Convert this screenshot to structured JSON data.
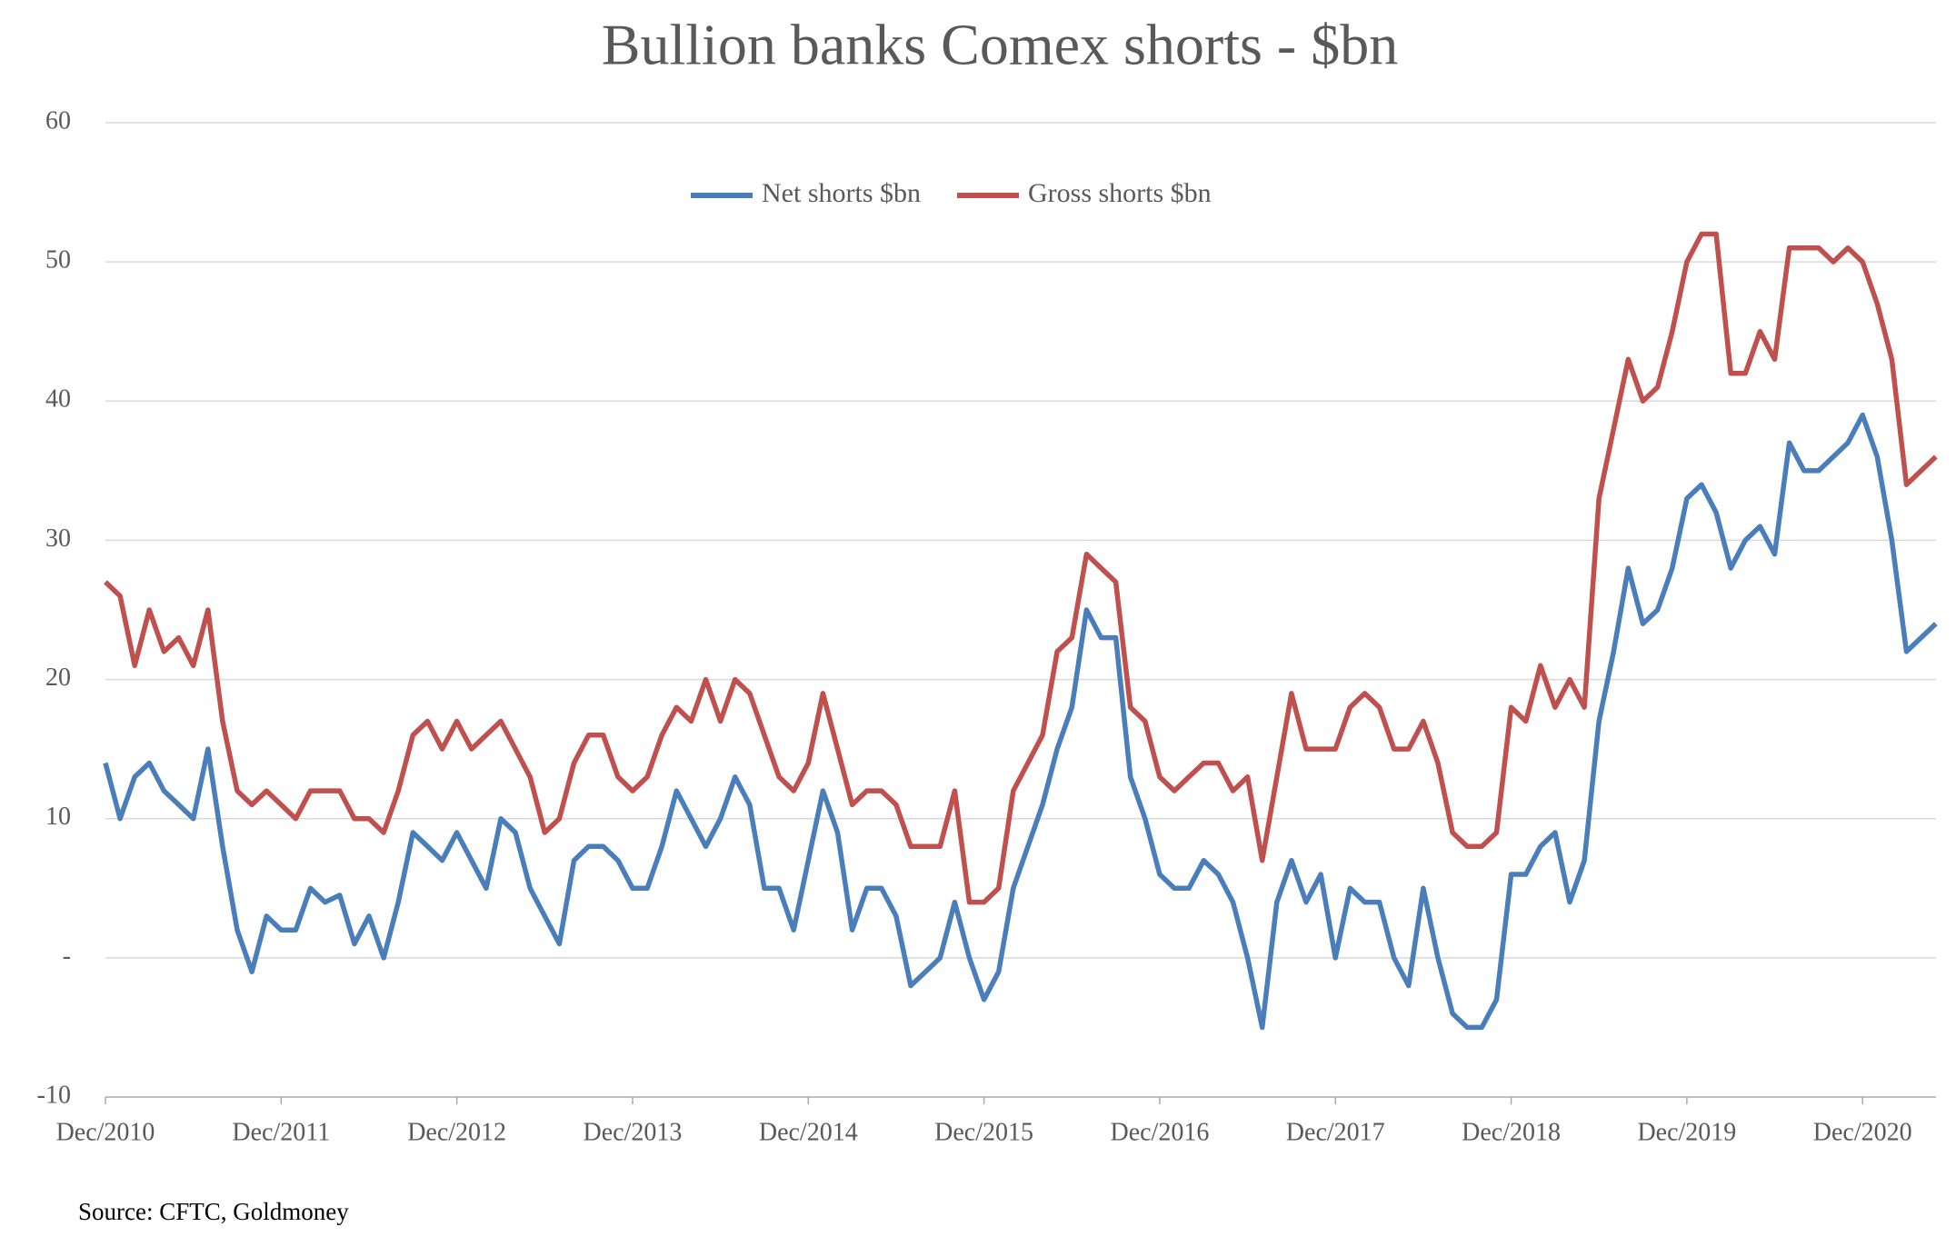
{
  "chart_data": {
    "type": "line",
    "title": "Bullion banks Comex shorts - $bn",
    "source": "Source: CFTC, Goldmoney",
    "categories": [
      "Dec/2010",
      null,
      null,
      null,
      null,
      null,
      null,
      null,
      null,
      null,
      null,
      null,
      "Dec/2011",
      null,
      null,
      null,
      null,
      null,
      null,
      null,
      null,
      null,
      null,
      null,
      "Dec/2012",
      null,
      null,
      null,
      null,
      null,
      null,
      null,
      null,
      null,
      null,
      null,
      "Dec/2013",
      null,
      null,
      null,
      null,
      null,
      null,
      null,
      null,
      null,
      null,
      null,
      "Dec/2014",
      null,
      null,
      null,
      null,
      null,
      null,
      null,
      null,
      null,
      null,
      null,
      "Dec/2015",
      null,
      null,
      null,
      null,
      null,
      null,
      null,
      null,
      null,
      null,
      null,
      "Dec/2016",
      null,
      null,
      null,
      null,
      null,
      null,
      null,
      null,
      null,
      null,
      null,
      "Dec/2017",
      null,
      null,
      null,
      null,
      null,
      null,
      null,
      null,
      null,
      null,
      null,
      "Dec/2018",
      null,
      null,
      null,
      null,
      null,
      null,
      null,
      null,
      null,
      null,
      null,
      "Dec/2019",
      null,
      null,
      null,
      null,
      null,
      null,
      null,
      null,
      null,
      null,
      null,
      "Dec/2020",
      null,
      null,
      null,
      null,
      null
    ],
    "series": [
      {
        "name": "Net shorts $bn",
        "color": "#4a7ebb",
        "values": [
          14,
          10,
          13,
          14,
          12,
          11,
          10,
          15,
          8,
          2,
          -1,
          3,
          2,
          2,
          5,
          4,
          4.5,
          1,
          3,
          0,
          4,
          9,
          8,
          7,
          9,
          7,
          5,
          10,
          9,
          5,
          3,
          1,
          7,
          8,
          8,
          7,
          5,
          5,
          8,
          12,
          10,
          8,
          10,
          13,
          11,
          5,
          5,
          2,
          7,
          12,
          9,
          2,
          5,
          5,
          3,
          -2,
          -1,
          0,
          4,
          0,
          -3,
          -1,
          5,
          8,
          11,
          15,
          18,
          25,
          23,
          23,
          13,
          10,
          6,
          5,
          5,
          7,
          6,
          4,
          0,
          -5,
          4,
          7,
          4,
          6,
          0,
          5,
          4,
          4,
          0,
          -2,
          5,
          0,
          -4,
          -5,
          -5,
          -3,
          6,
          6,
          8,
          9,
          4,
          7,
          17,
          22,
          28,
          24,
          25,
          28,
          33,
          34,
          32,
          28,
          30,
          31,
          29,
          37,
          35,
          35,
          36,
          37,
          39,
          36,
          30,
          22,
          23,
          24
        ]
      },
      {
        "name": "Gross shorts $bn",
        "color": "#c0504d",
        "values": [
          27,
          26,
          21,
          25,
          22,
          23,
          21,
          25,
          17,
          12,
          11,
          12,
          11,
          10,
          12,
          12,
          12,
          10,
          10,
          9,
          12,
          16,
          17,
          15,
          17,
          15,
          16,
          17,
          15,
          13,
          9,
          10,
          14,
          16,
          16,
          13,
          12,
          13,
          16,
          18,
          17,
          20,
          17,
          20,
          19,
          16,
          13,
          12,
          14,
          19,
          15,
          11,
          12,
          12,
          11,
          8,
          8,
          8,
          12,
          4,
          4,
          5,
          12,
          14,
          16,
          22,
          23,
          29,
          28,
          27,
          18,
          17,
          13,
          12,
          13,
          14,
          14,
          12,
          13,
          7,
          13,
          19,
          15,
          15,
          15,
          18,
          19,
          18,
          15,
          15,
          17,
          14,
          9,
          8,
          8,
          9,
          18,
          17,
          21,
          18,
          20,
          18,
          33,
          38,
          43,
          40,
          41,
          45,
          50,
          52,
          52,
          42,
          42,
          45,
          43,
          51,
          51,
          51,
          50,
          51,
          50,
          47,
          43,
          34,
          35,
          36
        ]
      }
    ],
    "ylim": [
      -10,
      60
    ],
    "yticks": [
      -10,
      {
        "value": 0,
        "label": "-"
      },
      10,
      20,
      30,
      40,
      50,
      60
    ],
    "grid": true,
    "legend": "top"
  }
}
